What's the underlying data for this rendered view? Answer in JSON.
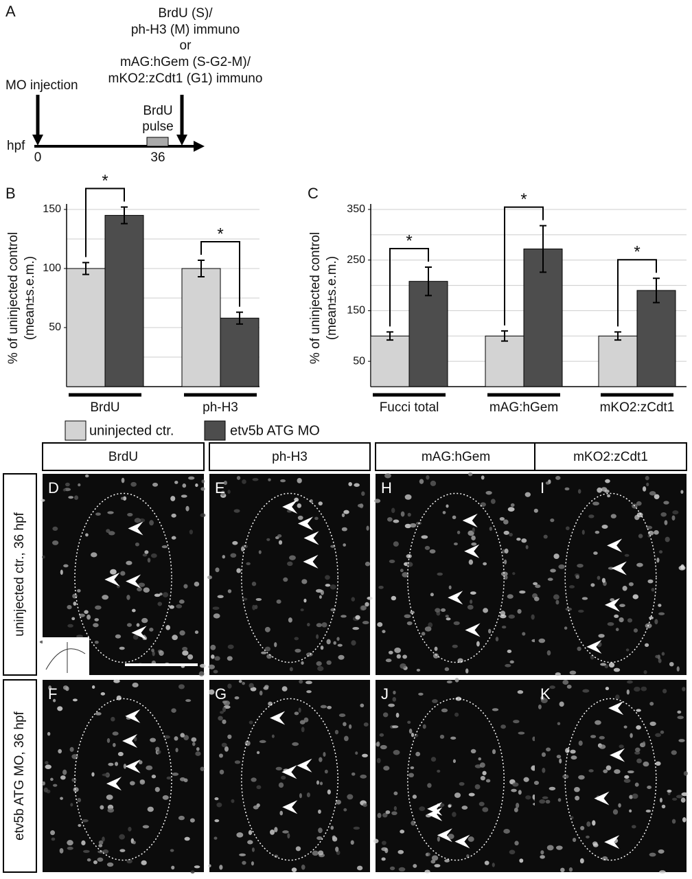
{
  "timeline": {
    "panel": "A",
    "axis_label": "hpf",
    "ticks": [
      "0",
      "36"
    ],
    "start_event": [
      "MO injection"
    ],
    "end_event": [
      "BrdU (S)/",
      "ph-H3 (M) immuno",
      "or",
      "mAG:hGem (S-G2-M)/",
      "mKO2:zCdt1 (G1) immuno"
    ],
    "pulse": [
      "BrdU",
      "pulse"
    ]
  },
  "chart_data": [
    {
      "type": "bar",
      "label": "B",
      "ylabel": [
        "% of uninjected control",
        "(mean±s.e.m.)"
      ],
      "categories": [
        "BrdU",
        "ph-H3"
      ],
      "significance": [
        "*",
        "*"
      ],
      "series": [
        {
          "name": "uninjected ctr.",
          "color": "#d3d3d3",
          "values": [
            100,
            100
          ],
          "errors": [
            5,
            7
          ]
        },
        {
          "name": "etv5b ATG MO",
          "color": "#4d4d4d",
          "values": [
            145,
            58
          ],
          "errors": [
            7,
            5
          ]
        }
      ],
      "ylim": [
        0,
        150
      ],
      "yticks": [
        50,
        100,
        150
      ],
      "grid_lines": [
        25,
        50,
        75,
        100,
        125,
        150
      ]
    },
    {
      "type": "bar",
      "label": "C",
      "ylabel": [
        "% of uninjected control",
        "(mean±s.e.m.)"
      ],
      "categories": [
        "Fucci total",
        "mAG:hGem",
        "mKO2:zCdt1"
      ],
      "significance": [
        "*",
        "*",
        "*"
      ],
      "series": [
        {
          "name": "uninjected ctr.",
          "color": "#d3d3d3",
          "values": [
            100,
            100,
            100
          ],
          "errors": [
            8,
            10,
            8
          ]
        },
        {
          "name": "etv5b ATG MO",
          "color": "#4d4d4d",
          "values": [
            208,
            272,
            190
          ],
          "errors": [
            28,
            46,
            24
          ]
        }
      ],
      "ylim": [
        0,
        350
      ],
      "yticks": [
        50,
        150,
        250,
        350
      ],
      "grid_lines": [
        50,
        100,
        150,
        200,
        250,
        300,
        350
      ]
    }
  ],
  "images": {
    "columns": [
      "BrdU",
      "ph-H3",
      "mAG:hGem",
      "mKO2:zCdt1"
    ],
    "rows": [
      "uninjected ctr., 36 hpf",
      "etv5b ATG MO, 36 hpf"
    ],
    "panel_letters": [
      [
        "D",
        "E",
        "H",
        "I"
      ],
      [
        "F",
        "G",
        "J",
        "K"
      ]
    ]
  }
}
